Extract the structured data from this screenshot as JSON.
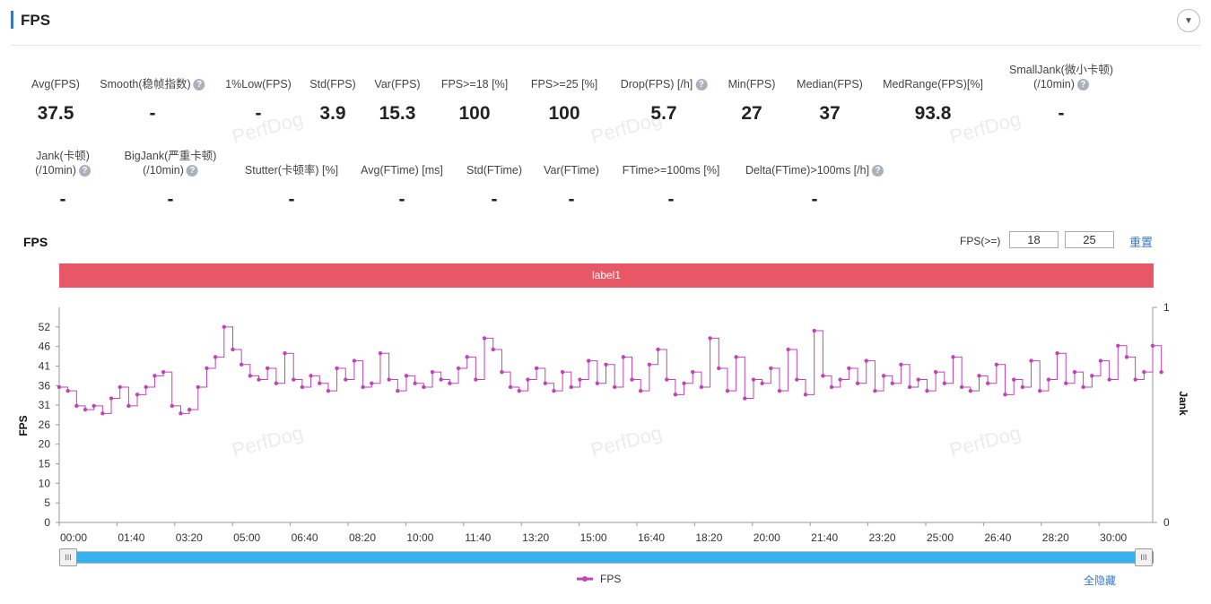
{
  "header": {
    "title": "FPS",
    "collapse_icon": "chevron-down-icon"
  },
  "stats_row1": [
    {
      "label": "Avg(FPS)",
      "value": "37.5",
      "help": false,
      "x": 62
    },
    {
      "label": "Smooth(稳帧指数)",
      "value": "-",
      "help": true,
      "x": 170
    },
    {
      "label": "1%Low(FPS)",
      "value": "-",
      "help": false,
      "x": 288
    },
    {
      "label": "Std(FPS)",
      "value": "3.9",
      "help": false,
      "x": 371
    },
    {
      "label": "Var(FPS)",
      "value": "15.3",
      "help": false,
      "x": 443
    },
    {
      "label": "FPS>=18 [%]",
      "value": "100",
      "help": false,
      "x": 529
    },
    {
      "label": "FPS>=25 [%]",
      "value": "100",
      "help": false,
      "x": 629
    },
    {
      "label": "Drop(FPS) [/h]",
      "value": "5.7",
      "help": true,
      "x": 740
    },
    {
      "label": "Min(FPS)",
      "value": "27",
      "help": false,
      "x": 838
    },
    {
      "label": "Median(FPS)",
      "value": "37",
      "help": false,
      "x": 925
    },
    {
      "label": "MedRange(FPS)[%]",
      "value": "93.8",
      "help": false,
      "x": 1040
    },
    {
      "label": "SmallJank(微小卡顿)",
      "label2": "(/10min)",
      "value": "-",
      "help": true,
      "x": 1183
    }
  ],
  "stats_row2": [
    {
      "label": "Jank(卡顿)",
      "label2": "(/10min)",
      "value": "-",
      "help": true
    },
    {
      "label": "BigJank(严重卡顿)",
      "label2": "(/10min)",
      "value": "-",
      "help": true
    },
    {
      "label": "Stutter(卡顿率) [%]",
      "value": "-",
      "help": false
    },
    {
      "label": "Avg(FTime) [ms]",
      "value": "-",
      "help": false
    },
    {
      "label": "Std(FTime)",
      "value": "-",
      "help": false
    },
    {
      "label": "Var(FTime)",
      "value": "-",
      "help": false
    },
    {
      "label": "FTime>=100ms [%]",
      "value": "-",
      "help": false
    },
    {
      "label": "Delta(FTime)>100ms [/h]",
      "value": "-",
      "help": true
    }
  ],
  "watermark": "PerfDog",
  "chart_section": {
    "title": "FPS",
    "threshold_label": "FPS(>=)",
    "threshold1": "18",
    "threshold2": "25",
    "reset_label": "重置",
    "label_bar": "label1",
    "hide_all": "全隐藏"
  },
  "chart_data": {
    "type": "line",
    "title": "FPS",
    "xlabel": "",
    "ylabel": "FPS",
    "y2label": "Jank",
    "ylim": [
      0,
      57.2
    ],
    "y2lim": [
      0,
      1
    ],
    "y_ticks": [
      "0",
      "5",
      "10",
      "15",
      "20",
      "26",
      "31",
      "36",
      "41",
      "46",
      "52"
    ],
    "y2_ticks": [
      "0",
      "1"
    ],
    "x_ticks": [
      "00:00",
      "01:40",
      "03:20",
      "05:00",
      "06:40",
      "08:20",
      "10:00",
      "11:40",
      "13:20",
      "15:00",
      "16:40",
      "18:20",
      "20:00",
      "21:40",
      "23:20",
      "25:00",
      "26:40",
      "28:20",
      "30:00"
    ],
    "xlim_seconds": [
      0,
      1890
    ],
    "interval_seconds": 15,
    "series": [
      {
        "name": "FPS",
        "color": "#c044b8",
        "values": [
          36,
          35,
          31,
          30,
          31,
          29,
          33,
          36,
          31,
          34,
          36,
          39,
          40,
          31,
          29,
          30,
          36,
          41,
          44,
          52,
          46,
          42,
          39,
          38,
          41,
          37,
          45,
          38,
          36,
          39,
          37,
          35,
          41,
          38,
          43,
          36,
          37,
          45,
          38,
          35,
          39,
          37,
          36,
          40,
          38,
          37,
          41,
          44,
          38,
          49,
          46,
          40,
          36,
          35,
          38,
          41,
          37,
          35,
          40,
          36,
          38,
          43,
          37,
          42,
          36,
          44,
          38,
          35,
          42,
          46,
          38,
          34,
          37,
          40,
          36,
          49,
          41,
          35,
          44,
          33,
          38,
          37,
          41,
          35,
          46,
          38,
          34,
          51,
          39,
          36,
          38,
          41,
          37,
          43,
          35,
          39,
          37,
          42,
          36,
          38,
          35,
          40,
          37,
          44,
          36,
          35,
          39,
          37,
          42,
          34,
          38,
          36,
          43,
          35,
          38,
          45,
          37,
          40,
          36,
          39,
          43,
          38,
          47,
          44,
          38,
          40,
          47,
          40
        ]
      }
    ]
  }
}
